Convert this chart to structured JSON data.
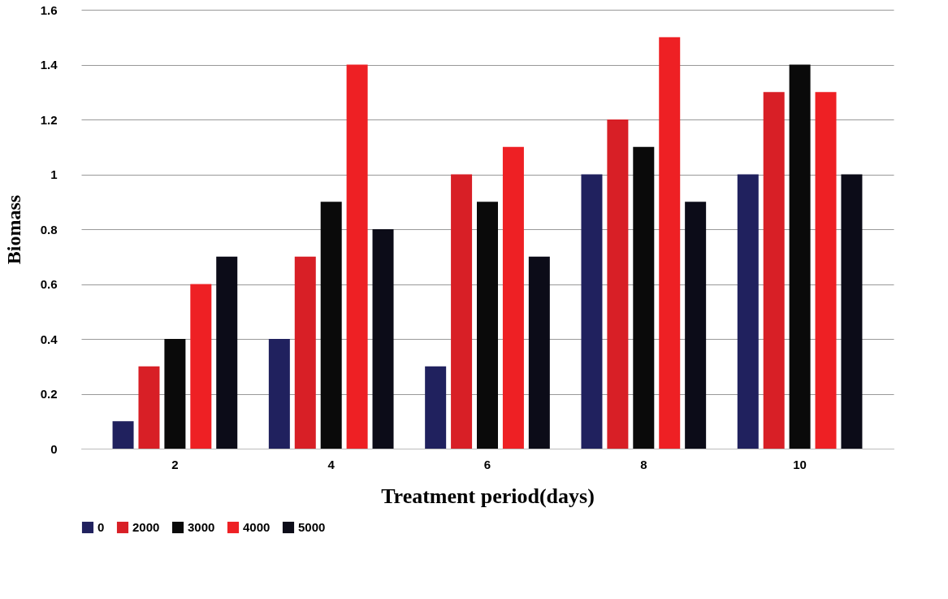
{
  "chart_data": {
    "type": "bar",
    "xlabel": "Treatment period(days)",
    "ylabel": "Biomass",
    "categories": [
      "2",
      "4",
      "6",
      "8",
      "10"
    ],
    "series": [
      {
        "name": "0",
        "color": "#20215e",
        "values": [
          0.1,
          0.4,
          0.3,
          1.0,
          1.0
        ]
      },
      {
        "name": "2000",
        "color": "#d81f26",
        "values": [
          0.3,
          0.7,
          1.0,
          1.2,
          1.3
        ]
      },
      {
        "name": "3000",
        "color": "#0a0a0a",
        "values": [
          0.4,
          0.9,
          0.9,
          1.1,
          1.4
        ]
      },
      {
        "name": "4000",
        "color": "#ee2024",
        "values": [
          0.6,
          1.4,
          1.1,
          1.5,
          1.3
        ]
      },
      {
        "name": "5000",
        "color": "#0c0c18",
        "values": [
          0.7,
          0.8,
          0.7,
          0.9,
          1.0
        ]
      }
    ],
    "ylim": [
      0,
      1.6
    ],
    "yticks": [
      0,
      0.2,
      0.4,
      0.6,
      0.8,
      1,
      1.2,
      1.4,
      1.6
    ],
    "grid": "y",
    "legend": "bottom"
  }
}
